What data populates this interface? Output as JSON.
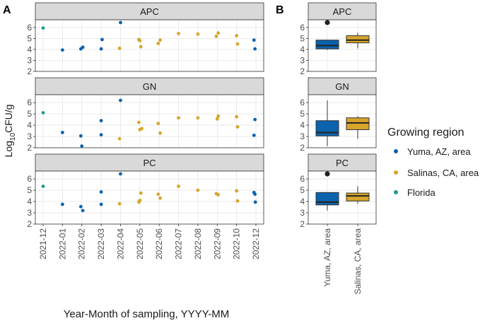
{
  "panel_labels": {
    "a": "A",
    "b": "B"
  },
  "colors": {
    "yuma": "#0b62ad",
    "salinas": "#d6a52a",
    "florida": "#22998a",
    "strip": "#d9d9d9",
    "grid": "#e6e6e6",
    "panel_border": "#333333",
    "box_yuma": "#0b62ad",
    "box_salinas": "#d6a52a"
  },
  "chart_data": [
    {
      "id": "A",
      "type": "scatter",
      "facets": [
        "APC",
        "GN",
        "PC"
      ],
      "xlabel": "Year-Month of sampling, YYYY-MM",
      "ylabel_parts": [
        "Log",
        "10",
        "CFU/g"
      ],
      "x_categories": [
        "2021-12",
        "2022-01",
        "2022-02",
        "2022-03",
        "2022-04",
        "2022-05",
        "2022-06",
        "2022-07",
        "2022-08",
        "2022-09",
        "2022-10",
        "2022-12"
      ],
      "y_ticks": [
        2,
        3,
        4,
        5,
        6
      ],
      "ylim": [
        2,
        6.7
      ],
      "series": [
        {
          "name": "Yuma, AZ, area",
          "color_key": "yuma",
          "points": {
            "APC": [
              [
                2.0,
                3.95
              ],
              [
                2.95,
                4.05
              ],
              [
                3.05,
                4.2
              ],
              [
                4.0,
                4.05
              ],
              [
                4.05,
                4.9
              ],
              [
                5.0,
                6.45
              ],
              [
                11.9,
                4.85
              ],
              [
                11.95,
                4.05
              ]
            ],
            "GN": [
              [
                2.0,
                3.35
              ],
              [
                2.95,
                3.05
              ],
              [
                3.0,
                2.15
              ],
              [
                4.0,
                3.15
              ],
              [
                4.0,
                4.4
              ],
              [
                5.0,
                6.2
              ],
              [
                11.9,
                3.1
              ],
              [
                11.95,
                4.5
              ]
            ],
            "PC": [
              [
                2.0,
                3.75
              ],
              [
                2.95,
                3.55
              ],
              [
                3.05,
                3.2
              ],
              [
                4.0,
                3.75
              ],
              [
                4.0,
                4.85
              ],
              [
                5.0,
                6.45
              ],
              [
                11.9,
                4.8
              ],
              [
                11.95,
                4.65
              ],
              [
                11.97,
                3.95
              ]
            ]
          }
        },
        {
          "name": "Salinas, CA, area",
          "color_key": "salinas",
          "points": {
            "APC": [
              [
                4.95,
                4.1
              ],
              [
                5.95,
                4.9
              ],
              [
                6.05,
                4.25
              ],
              [
                6.0,
                4.8
              ],
              [
                6.95,
                4.55
              ],
              [
                7.05,
                4.85
              ],
              [
                8.0,
                5.45
              ],
              [
                9.0,
                5.4
              ],
              [
                9.95,
                5.2
              ],
              [
                10.05,
                5.5
              ],
              [
                11.0,
                5.25
              ],
              [
                11.05,
                4.5
              ]
            ],
            "GN": [
              [
                4.95,
                2.8
              ],
              [
                5.95,
                4.25
              ],
              [
                6.0,
                3.6
              ],
              [
                6.1,
                3.7
              ],
              [
                6.95,
                4.15
              ],
              [
                7.05,
                3.3
              ],
              [
                8.0,
                4.65
              ],
              [
                9.0,
                4.65
              ],
              [
                10.0,
                4.55
              ],
              [
                10.05,
                4.8
              ],
              [
                11.0,
                4.75
              ],
              [
                11.05,
                3.85
              ]
            ],
            "PC": [
              [
                4.95,
                3.8
              ],
              [
                5.95,
                3.95
              ],
              [
                6.0,
                4.1
              ],
              [
                6.05,
                4.75
              ],
              [
                6.95,
                4.65
              ],
              [
                7.05,
                4.3
              ],
              [
                8.0,
                5.35
              ],
              [
                9.0,
                5.0
              ],
              [
                9.95,
                4.7
              ],
              [
                10.05,
                4.6
              ],
              [
                11.0,
                4.95
              ],
              [
                11.05,
                4.05
              ]
            ]
          }
        },
        {
          "name": "Florida",
          "color_key": "florida",
          "points": {
            "APC": [
              [
                1.0,
                5.95
              ]
            ],
            "GN": [
              [
                1.0,
                5.1
              ]
            ],
            "PC": [
              [
                1.0,
                5.35
              ]
            ]
          }
        }
      ]
    },
    {
      "id": "B",
      "type": "box",
      "facets": [
        "APC",
        "GN",
        "PC"
      ],
      "categories": [
        "Yuma, AZ, area",
        "Salinas, CA, area"
      ],
      "y_ticks": [
        2,
        3,
        4,
        5,
        6
      ],
      "ylim": [
        2,
        6.7
      ],
      "boxes": {
        "APC": [
          {
            "min": 3.95,
            "q1": 4.05,
            "median": 4.35,
            "q3": 4.85,
            "max": 4.9,
            "outliers": [
              6.45
            ]
          },
          {
            "min": 4.1,
            "q1": 4.6,
            "median": 4.85,
            "q3": 5.25,
            "max": 5.5,
            "outliers": []
          }
        ],
        "GN": [
          {
            "min": 2.15,
            "q1": 3.05,
            "median": 3.35,
            "q3": 4.4,
            "max": 6.2,
            "outliers": []
          },
          {
            "min": 2.8,
            "q1": 3.6,
            "median": 4.2,
            "q3": 4.65,
            "max": 4.8,
            "outliers": []
          }
        ],
        "PC": [
          {
            "min": 3.2,
            "q1": 3.7,
            "median": 3.95,
            "q3": 4.8,
            "max": 4.85,
            "outliers": [
              6.45
            ]
          },
          {
            "min": 3.8,
            "q1": 4.05,
            "median": 4.5,
            "q3": 4.75,
            "max": 5.35,
            "outliers": []
          }
        ]
      }
    }
  ],
  "legend": {
    "title": "Growing region",
    "items": [
      {
        "label": "Yuma, AZ, area",
        "color_key": "yuma"
      },
      {
        "label": "Salinas, CA, area",
        "color_key": "salinas"
      },
      {
        "label": "Florida",
        "color_key": "florida"
      }
    ]
  }
}
